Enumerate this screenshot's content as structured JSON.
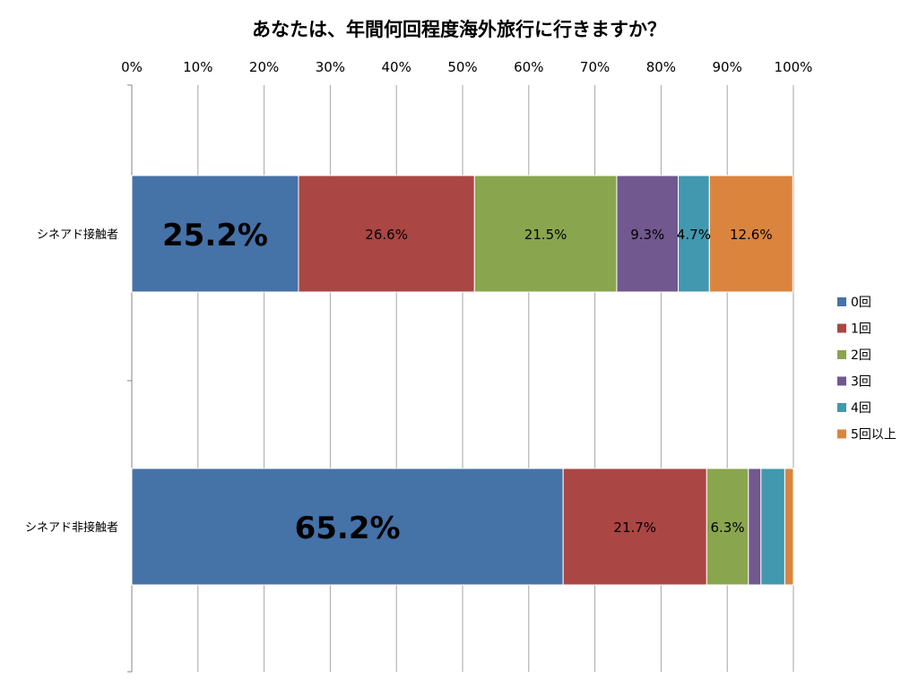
{
  "chart_data": {
    "type": "bar",
    "orientation": "horizontal",
    "stacked": "percent",
    "title": "あなたは、年間何回程度海外旅行に行きますか？",
    "categories": [
      "シネアド接触者",
      "シネアド非接触者"
    ],
    "x_ticks": [
      "0%",
      "10%",
      "20%",
      "30%",
      "40%",
      "50%",
      "60%",
      "70%",
      "80%",
      "90%",
      "100%"
    ],
    "xlim": [
      0,
      100
    ],
    "grid": true,
    "legend_position": "right",
    "series": [
      {
        "name": "0回",
        "color": "#4572A7",
        "values": [
          25.2,
          65.2
        ],
        "labels": [
          "25.2%",
          "65.2%"
        ],
        "emphasis": true
      },
      {
        "name": "1回",
        "color": "#AA4643",
        "values": [
          26.6,
          21.7
        ],
        "labels": [
          "26.6%",
          "21.7%"
        ]
      },
      {
        "name": "2回",
        "color": "#89A54E",
        "values": [
          21.5,
          6.3
        ],
        "labels": [
          "21.5%",
          "6.3%"
        ]
      },
      {
        "name": "3回",
        "color": "#71588F",
        "values": [
          9.3,
          1.9
        ],
        "labels": [
          "9.3%",
          ""
        ]
      },
      {
        "name": "4回",
        "color": "#4198AF",
        "values": [
          4.7,
          3.6
        ],
        "labels": [
          "4.7%",
          ""
        ]
      },
      {
        "name": "5回以上",
        "color": "#DB843D",
        "values": [
          12.6,
          1.3
        ],
        "labels": [
          "12.6%",
          ""
        ]
      }
    ]
  }
}
